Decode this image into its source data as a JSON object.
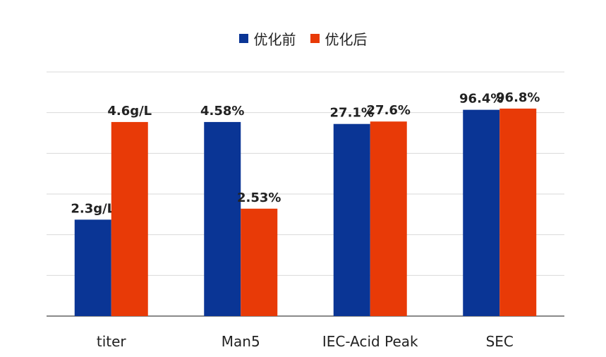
{
  "chart_data": {
    "type": "bar",
    "categories": [
      "titer",
      "Man5",
      "IEC-Acid Peak",
      "SEC"
    ],
    "series": [
      {
        "name": "优化前",
        "color": "#0a3595",
        "labels": [
          "2.3g/L",
          "4.58%",
          "27.1%",
          "96.4%"
        ],
        "values": [
          2.3,
          4.58,
          27.1,
          96.4
        ],
        "relative_height": [
          0.395,
          0.795,
          0.787,
          0.845
        ]
      },
      {
        "name": "优化后",
        "color": "#e83a07",
        "labels": [
          "4.6g/L",
          "2.53%",
          "27.6%",
          "96.8%"
        ],
        "values": [
          4.6,
          2.53,
          27.6,
          96.8
        ],
        "relative_height": [
          0.795,
          0.44,
          0.797,
          0.85
        ]
      }
    ],
    "legend_position": "top-center",
    "grid": true,
    "gridline_count": 7,
    "y_axis_labels_visible": false
  }
}
